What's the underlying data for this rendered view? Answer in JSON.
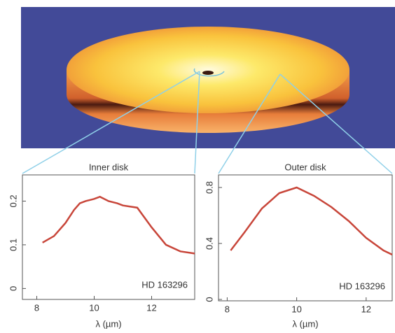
{
  "chart_data": [
    {
      "type": "line",
      "title": "Inner disk",
      "x_label": "λ (µm)",
      "annotation": "HD 163296",
      "x": [
        8.2,
        8.6,
        9.0,
        9.3,
        9.5,
        9.7,
        10.0,
        10.2,
        10.5,
        10.8,
        11.0,
        11.5,
        12.0,
        12.5,
        13.0,
        13.5
      ],
      "series": [
        {
          "name": null,
          "color": "#c8463a",
          "values": [
            0.105,
            0.12,
            0.15,
            0.18,
            0.195,
            0.2,
            0.205,
            0.21,
            0.2,
            0.195,
            0.19,
            0.185,
            0.14,
            0.1,
            0.085,
            0.08
          ]
        }
      ],
      "xlim": [
        7.5,
        13.5
      ],
      "xticks": [
        8,
        10,
        12
      ],
      "ylim": [
        -0.025,
        0.26
      ],
      "yticks": [
        0,
        0.1,
        0.2
      ]
    },
    {
      "type": "line",
      "title": "Outer disk",
      "x_label": "λ (µm)",
      "annotation": "HD 163296",
      "x": [
        8.1,
        8.5,
        9.0,
        9.5,
        10.0,
        10.5,
        11.0,
        11.5,
        12.0,
        12.5,
        12.75
      ],
      "series": [
        {
          "name": null,
          "color": "#c8463a",
          "values": [
            0.35,
            0.48,
            0.65,
            0.76,
            0.8,
            0.74,
            0.66,
            0.56,
            0.44,
            0.35,
            0.32
          ]
        }
      ],
      "xlim": [
        7.75,
        12.75
      ],
      "xticks": [
        8,
        10,
        12
      ],
      "ylim": [
        -0.01,
        0.89
      ],
      "yticks": [
        0,
        0.4,
        0.8
      ]
    }
  ]
}
